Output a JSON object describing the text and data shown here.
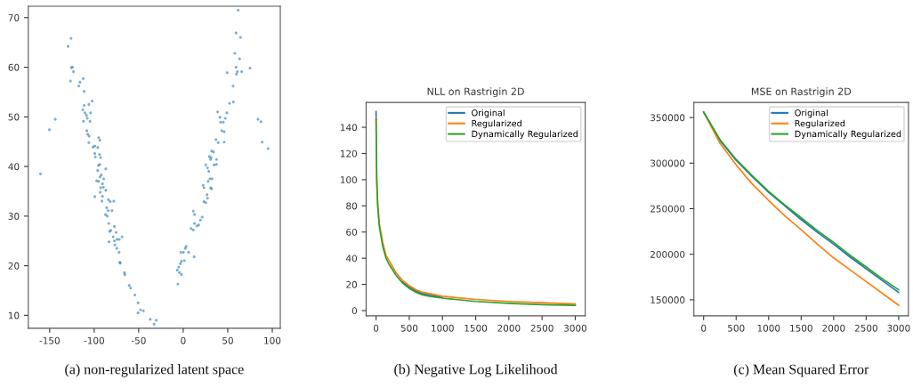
{
  "chart_data": [
    {
      "type": "scatter",
      "marker": "circle",
      "legend": false,
      "grid": false,
      "annotations": [
        "(a) non-regularized latent space"
      ],
      "xlim": [
        -174,
        109
      ],
      "ylim": [
        7.4,
        72.3
      ],
      "xticks": [
        -150,
        -100,
        -50,
        0,
        50,
        100
      ],
      "yticks": [
        10,
        20,
        30,
        40,
        50,
        60,
        70
      ],
      "series": [
        {
          "color": "#1f77b4",
          "x": [
            -160.3,
            -150.3,
            -143.7,
            -129.3,
            -126,
            -125.7,
            -124.3,
            -123.3,
            -126.7,
            -117.3,
            -116,
            -112.3,
            -111.3,
            -111.3,
            -112.7,
            -110.3,
            -108.7,
            -107.7,
            -112,
            -106,
            -102.3,
            -104,
            -104.7,
            -108.3,
            -107.3,
            -105.7,
            -106,
            -101.3,
            -99.3,
            -95,
            -93.7,
            -96,
            -99.3,
            -98.7,
            -94,
            -92.7,
            -95.3,
            -93.7,
            -96,
            -87,
            -97.3,
            -95,
            -93.3,
            -92,
            -89.3,
            -90.7,
            -92.7,
            -89.7,
            -93.3,
            -99.3,
            -90.7,
            -87,
            -91.3,
            -84,
            -82,
            -78,
            -86,
            -84.3,
            -80,
            -87.3,
            -85.3,
            -83.7,
            -77.3,
            -81.3,
            -82.7,
            -75.3,
            -78.7,
            -74.3,
            -71.7,
            -68.7,
            -77.3,
            -76.7,
            -83.3,
            -74.7,
            -72,
            -71.3,
            -70.7,
            -66,
            -65.7,
            -60.7,
            -59,
            -54.3,
            -50.7,
            -50.7,
            -48,
            -44.7,
            -37,
            -32.7,
            -30.3,
            -6,
            -6.7,
            -5,
            -3.3,
            -4.3,
            -2,
            -2,
            -2.7,
            1.3,
            0.3,
            2.3,
            3.3,
            6,
            8.7,
            11.3,
            11.3,
            12.7,
            12.3,
            12.7,
            15.3,
            17.3,
            19.3,
            21.3,
            23.3,
            25.3,
            22.3,
            23.3,
            27.3,
            26.7,
            25.3,
            27.3,
            28.7,
            30,
            28,
            32.3,
            30.7,
            32,
            29.3,
            31.3,
            32,
            34,
            30.7,
            34.7,
            37.3,
            37.3,
            36.7,
            39.3,
            38.7,
            41.3,
            42,
            43.3,
            45,
            46,
            46,
            47.3,
            49,
            49.3,
            52,
            56.3,
            56,
            58,
            59.3,
            59.7,
            60.7,
            59.3,
            61.7,
            63.3,
            64.3,
            65.7,
            75,
            84,
            87.3,
            88.7,
            95.3
          ],
          "values": [
            38.5,
            47.4,
            49.5,
            64.2,
            65.8,
            59.9,
            60,
            59.1,
            57.2,
            56.2,
            57,
            57.7,
            55.1,
            52.3,
            51.4,
            50.8,
            50.3,
            49.7,
            49.1,
            52.5,
            53.2,
            50.8,
            49.1,
            47.2,
            46.5,
            46.1,
            44.8,
            43.9,
            44.1,
            45.8,
            45.3,
            43.8,
            42.6,
            41.9,
            42.4,
            41.8,
            40.2,
            40.4,
            39.2,
            39.5,
            37.1,
            37,
            37.9,
            38.3,
            37.5,
            36.5,
            35.7,
            35.8,
            34.8,
            33.9,
            34,
            35.2,
            33,
            33.3,
            32.9,
            33,
            31.7,
            31.1,
            31.1,
            30.3,
            30,
            28.5,
            27.9,
            27.1,
            26.9,
            26.7,
            25.8,
            25.3,
            25.3,
            25.8,
            25,
            24.2,
            24.8,
            23.5,
            22.7,
            20.7,
            20.5,
            18.6,
            18.2,
            16,
            15.5,
            14.1,
            12.5,
            10.5,
            11.1,
            10.9,
            9.2,
            8.2,
            9,
            16.3,
            19.1,
            19.7,
            20.4,
            18.6,
            18.2,
            20.9,
            22.7,
            21,
            22.7,
            23.5,
            23.9,
            22.7,
            27.5,
            27.2,
            31,
            30.3,
            21.8,
            28.5,
            28,
            28.2,
            29.2,
            29.8,
            32.9,
            32.7,
            36.2,
            35.7,
            33.6,
            34.3,
            40.3,
            39.7,
            39,
            37.5,
            37,
            37.5,
            35.7,
            35.5,
            42,
            41.8,
            43.1,
            42.9,
            41.4,
            40.3,
            41.4,
            40.4,
            45.4,
            44.8,
            51,
            49.9,
            48.9,
            47.2,
            48.9,
            47,
            44.9,
            49.7,
            50.8,
            58.9,
            52.7,
            53,
            56.2,
            62.8,
            60,
            58.6,
            59.1,
            66.9,
            71.5,
            61.7,
            66,
            59.1,
            59.8,
            49.5,
            49,
            44.9,
            43.6
          ]
        }
      ]
    },
    {
      "type": "line",
      "title": "NLL on Rastrigin 2D",
      "legend": "top right",
      "grid": false,
      "annotations": [
        "(b) Negative Log Likelihood"
      ],
      "xlim": [
        -150,
        3150
      ],
      "ylim": [
        -4,
        159
      ],
      "xticks": [
        0,
        500,
        1000,
        1500,
        2000,
        2500,
        3000
      ],
      "yticks": [
        0,
        20,
        40,
        60,
        80,
        100,
        120,
        140
      ],
      "x": [
        0,
        10,
        25,
        50,
        100,
        150,
        200,
        300,
        400,
        500,
        600,
        700,
        800,
        1000,
        1200,
        1500,
        2000,
        2500,
        3000
      ],
      "series": [
        {
          "name": "Original",
          "color": "#1f77b4",
          "x": [
            0,
            1,
            10,
            25,
            50,
            100,
            150,
            200,
            300,
            400,
            500,
            600,
            700,
            800,
            1000
          ],
          "values": [
            152,
            146,
            null,
            null,
            null,
            null,
            null,
            null,
            null,
            22,
            18,
            15,
            13,
            12,
            10
          ]
        },
        {
          "name": "Regularized",
          "color": "#ff7f0e",
          "values": [
            147,
            102,
            82,
            66,
            52,
            42,
            38,
            29,
            23,
            19,
            16,
            14,
            13,
            11,
            10,
            8.5,
            7,
            6,
            5
          ]
        },
        {
          "name": "Dynamically Regularized",
          "color": "#2ca02c",
          "values": [
            146,
            98,
            79,
            64,
            49,
            40,
            35,
            27,
            21,
            17,
            14,
            12,
            11,
            9.5,
            8.5,
            7,
            5.5,
            4.5,
            4
          ]
        }
      ]
    },
    {
      "type": "line",
      "title": "MSE on Rastrigin 2D",
      "legend": "top right",
      "grid": false,
      "annotations": [
        "(c) Mean Squared Error"
      ],
      "xlim": [
        -150,
        3150
      ],
      "ylim": [
        132400,
        366600
      ],
      "xticks": [
        0,
        500,
        1000,
        1500,
        2000,
        2500,
        3000
      ],
      "yticks": [
        150000,
        200000,
        250000,
        300000,
        350000
      ],
      "x": [
        0,
        250,
        500,
        750,
        1000,
        1250,
        1500,
        1750,
        2000,
        2250,
        2500,
        2750,
        3000
      ],
      "series": [
        {
          "name": "Original",
          "color": "#1f77b4",
          "values": [
            356000,
            325000,
            303000,
            285000,
            268000,
            253000,
            238000,
            224000,
            211000,
            197000,
            184000,
            171000,
            158000
          ]
        },
        {
          "name": "Regularized",
          "color": "#ff7f0e",
          "values": [
            356000,
            322000,
            298000,
            277000,
            259000,
            242000,
            227000,
            211000,
            196000,
            183000,
            170000,
            157000,
            144000
          ]
        },
        {
          "name": "Dynamically Regularized",
          "color": "#2ca02c",
          "values": [
            356000,
            326000,
            304000,
            286000,
            269000,
            254000,
            240000,
            226000,
            213000,
            199000,
            186000,
            173000,
            161000
          ]
        }
      ]
    }
  ]
}
